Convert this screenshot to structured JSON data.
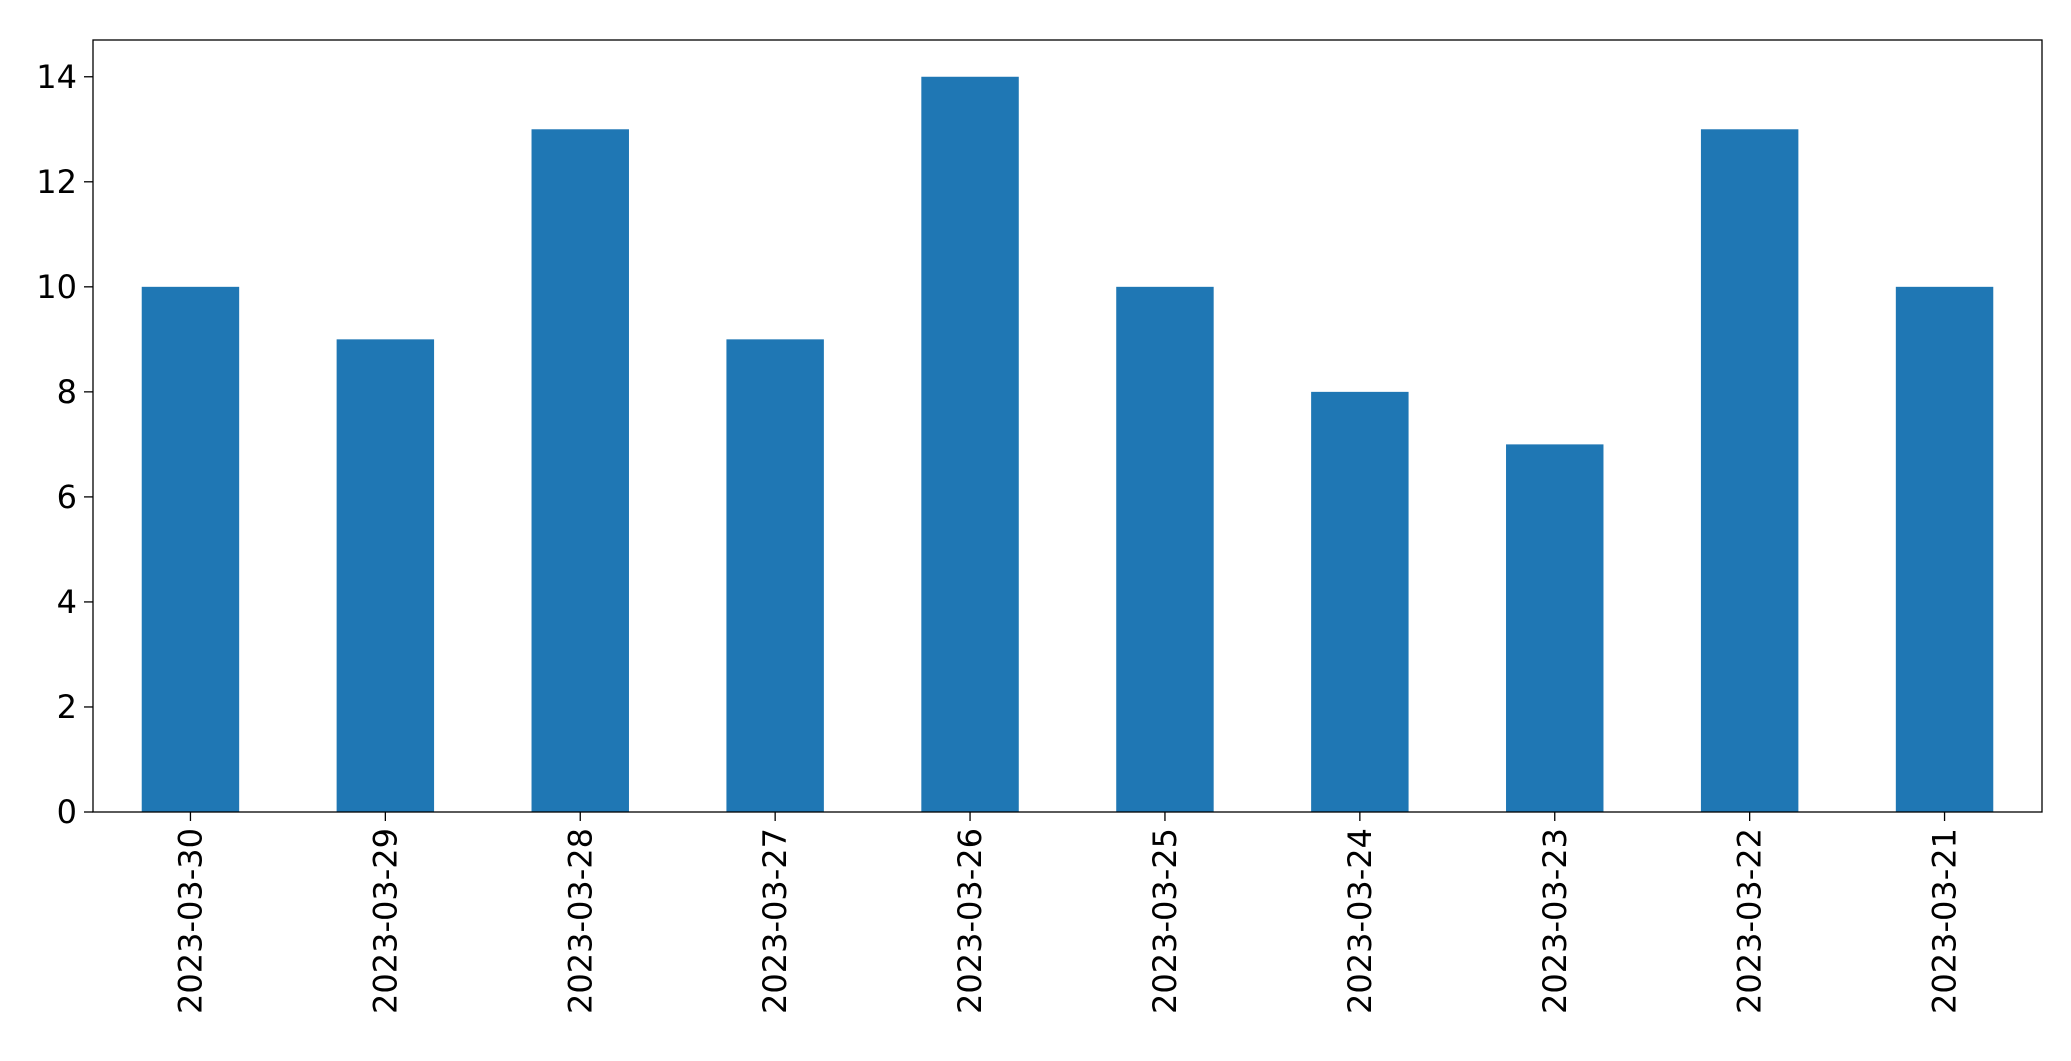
{
  "chart_data": {
    "type": "bar",
    "categories": [
      "2023-03-30",
      "2023-03-29",
      "2023-03-28",
      "2023-03-27",
      "2023-03-26",
      "2023-03-25",
      "2023-03-24",
      "2023-03-23",
      "2023-03-22",
      "2023-03-21"
    ],
    "values": [
      10,
      9,
      13,
      9,
      14,
      10,
      8,
      7,
      13,
      10
    ],
    "color": "#1f77b4",
    "ylim": [
      0,
      14.7
    ],
    "yticks": [
      0,
      2,
      4,
      6,
      8,
      10,
      12,
      14
    ],
    "grid": false
  }
}
